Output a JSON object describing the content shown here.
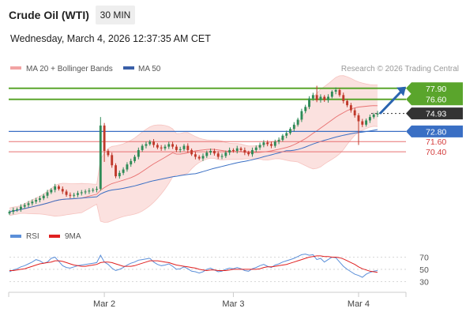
{
  "header": {
    "title": "Crude Oil (WTI)",
    "timeframe": "30 MIN",
    "datetime": "Wednesday, March 4, 2026 12:37:35 AM CET"
  },
  "legend": {
    "bollinger": "MA 20 + Bollinger Bands",
    "ma50": "MA 50",
    "credit": "Research © 2026 Trading Central",
    "rsi": "RSI",
    "rsi_ma": "9MA"
  },
  "colors": {
    "candle_up": "#2e8b57",
    "candle_down": "#c0392b",
    "ma20": "#e87070",
    "bollinger_fill": "#fbe1df",
    "ma50": "#3a6fc4",
    "resistance": "#5aa52c",
    "support": "#e87070",
    "pivot": "#3a6fc4",
    "current": "#333333",
    "rsi": "#5b8fd9",
    "rsi_ma": "#e02020",
    "arrow": "#2a64b0"
  },
  "chart_data": [
    {
      "type": "candlestick",
      "title": "Crude Oil (WTI)",
      "timeframe": "30 MIN",
      "ylim": [
        62.0,
        79.0
      ],
      "x_tick_labels": [
        "Mar 2",
        "Mar 3",
        "Mar 4"
      ],
      "closes": [
        63.3,
        63.5,
        63.6,
        63.9,
        64.1,
        64.3,
        64.5,
        64.7,
        64.9,
        65.2,
        65.6,
        65.9,
        66.3,
        66.0,
        65.7,
        65.3,
        65.2,
        65.3,
        65.5,
        65.6,
        65.7,
        65.8,
        65.9,
        66.0,
        73.5,
        70.5,
        70.0,
        68.8,
        67.5,
        67.9,
        68.3,
        68.9,
        69.3,
        69.8,
        70.6,
        71.1,
        71.3,
        71.6,
        71.2,
        70.9,
        70.8,
        71.0,
        71.3,
        71.0,
        70.6,
        70.7,
        71.1,
        70.6,
        70.1,
        69.8,
        69.6,
        69.9,
        70.3,
        70.5,
        70.2,
        69.8,
        69.9,
        70.3,
        70.6,
        70.5,
        70.8,
        70.6,
        70.3,
        70.1,
        70.6,
        70.9,
        71.2,
        71.5,
        71.3,
        71.1,
        71.6,
        71.8,
        72.3,
        72.6,
        73.1,
        73.6,
        74.2,
        75.2,
        75.7,
        76.7,
        77.1,
        76.5,
        76.9,
        76.5,
        76.9,
        77.5,
        77.7,
        77.1,
        76.4,
        75.9,
        75.3,
        74.7,
        74.0,
        73.6,
        74.1,
        74.5,
        74.8,
        74.93
      ],
      "levels": [
        {
          "value": 77.9,
          "label": "77.90",
          "kind": "resistance"
        },
        {
          "value": 76.6,
          "label": "76.60",
          "kind": "resistance"
        },
        {
          "value": 74.93,
          "label": "74.93",
          "kind": "current"
        },
        {
          "value": 72.8,
          "label": "72.80",
          "kind": "pivot"
        },
        {
          "value": 71.6,
          "label": "71.60",
          "kind": "support"
        },
        {
          "value": 70.4,
          "label": "70.40",
          "kind": "support"
        }
      ],
      "series": [
        {
          "name": "MA 20 + Bollinger Bands"
        },
        {
          "name": "MA 50"
        }
      ]
    },
    {
      "type": "line",
      "ylim": [
        15,
        90
      ],
      "y_ticks": [
        70,
        50,
        30
      ],
      "series": [
        {
          "name": "RSI",
          "values": [
            46,
            49,
            51,
            54,
            56,
            59,
            62,
            66,
            64,
            60,
            62,
            68,
            70,
            63,
            56,
            53,
            52,
            54,
            56,
            57,
            58,
            59,
            60,
            61,
            73,
            62,
            58,
            52,
            48,
            50,
            53,
            57,
            60,
            62,
            65,
            66,
            67,
            68,
            62,
            58,
            56,
            57,
            59,
            55,
            50,
            51,
            54,
            51,
            47,
            46,
            44,
            46,
            50,
            52,
            49,
            46,
            47,
            50,
            52,
            51,
            53,
            51,
            48,
            47,
            51,
            53,
            56,
            58,
            55,
            53,
            57,
            59,
            62,
            64,
            66,
            68,
            71,
            74,
            75,
            73,
            74,
            66,
            68,
            62,
            66,
            70,
            69,
            62,
            55,
            50,
            46,
            42,
            40,
            37,
            42,
            45,
            47,
            48
          ]
        },
        {
          "name": "9MA",
          "values": [
            48,
            48,
            49,
            50,
            51,
            53,
            55,
            57,
            59,
            60,
            61,
            62,
            64,
            64,
            63,
            61,
            59,
            57,
            56,
            55,
            55,
            56,
            57,
            58,
            61,
            62,
            62,
            61,
            59,
            57,
            55,
            55,
            55,
            56,
            58,
            60,
            62,
            64,
            64,
            64,
            63,
            62,
            61,
            59,
            57,
            56,
            55,
            54,
            53,
            52,
            50,
            49,
            48,
            49,
            49,
            48,
            48,
            48,
            49,
            50,
            50,
            50,
            50,
            50,
            50,
            50,
            51,
            53,
            54,
            54,
            55,
            56,
            57,
            58,
            60,
            62,
            64,
            66,
            68,
            70,
            71,
            72,
            72,
            71,
            71,
            70,
            70,
            69,
            67,
            64,
            61,
            58,
            54,
            51,
            49,
            47,
            46,
            45
          ]
        }
      ]
    }
  ]
}
